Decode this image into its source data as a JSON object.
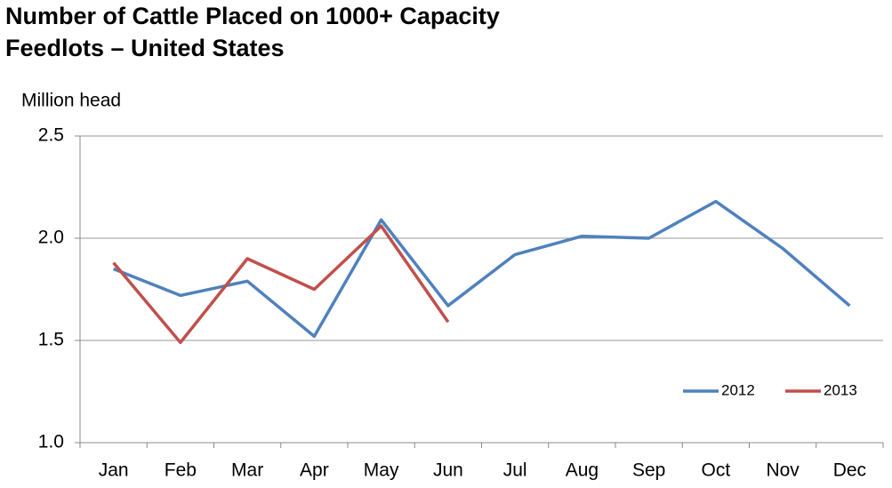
{
  "chart_data": {
    "type": "line",
    "title": [
      "Number of Cattle Placed on 1000+ Capacity",
      "Feedlots – United States"
    ],
    "ylabel": "Million head",
    "categories": [
      "Jan",
      "Feb",
      "Mar",
      "Apr",
      "May",
      "Jun",
      "Jul",
      "Aug",
      "Sep",
      "Oct",
      "Nov",
      "Dec"
    ],
    "series": [
      {
        "name": "2012",
        "color": "#4f81bd",
        "values": [
          1.85,
          1.72,
          1.79,
          1.52,
          2.09,
          1.67,
          1.92,
          2.01,
          2.0,
          2.18,
          1.95,
          1.67
        ]
      },
      {
        "name": "2013",
        "color": "#c0504d",
        "values": [
          1.88,
          1.49,
          1.9,
          1.75,
          2.06,
          1.59,
          null,
          null,
          null,
          null,
          null,
          null
        ]
      }
    ],
    "ylim": [
      1.0,
      2.5
    ],
    "yticks": [
      {
        "value": 1.0,
        "label": "1.0"
      },
      1.5,
      {
        "value": 2.0,
        "label": "2.0"
      },
      2.5
    ],
    "grid": true,
    "legend": "lower right"
  }
}
